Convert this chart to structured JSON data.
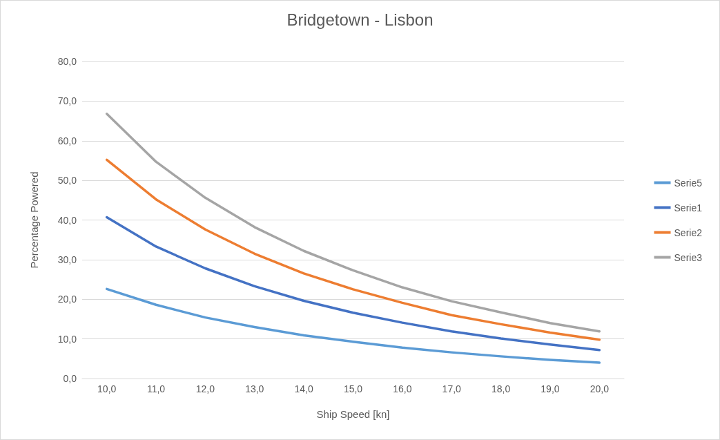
{
  "chart_data": {
    "type": "line",
    "title": "Bridgetown - Lisbon",
    "xlabel": "Ship Speed [kn]",
    "ylabel": "Percentage Powered",
    "categories": [
      "10,0",
      "11,0",
      "12,0",
      "13,0",
      "14,0",
      "15,0",
      "16,0",
      "17,0",
      "18,0",
      "19,0",
      "20,0"
    ],
    "series": [
      {
        "name": "Serie5",
        "color": "#5b9bd5",
        "values": [
          22.6,
          18.6,
          15.4,
          13.0,
          10.9,
          9.3,
          7.8,
          6.6,
          5.6,
          4.7,
          4.0
        ]
      },
      {
        "name": "Serie1",
        "color": "#4472c4",
        "values": [
          40.7,
          33.3,
          27.8,
          23.3,
          19.6,
          16.6,
          14.1,
          11.9,
          10.1,
          8.6,
          7.2
        ]
      },
      {
        "name": "Serie2",
        "color": "#ed7d31",
        "values": [
          55.2,
          45.2,
          37.6,
          31.5,
          26.5,
          22.5,
          19.1,
          16.0,
          13.7,
          11.6,
          9.8
        ]
      },
      {
        "name": "Serie3",
        "color": "#a5a5a5",
        "values": [
          66.8,
          54.7,
          45.6,
          38.2,
          32.2,
          27.3,
          23.0,
          19.5,
          16.7,
          14.0,
          11.9
        ]
      }
    ],
    "ylim": [
      0,
      80
    ],
    "yticks": [
      {
        "value": 0,
        "label": "0,0"
      },
      {
        "value": 10,
        "label": "10,0"
      },
      {
        "value": 20,
        "label": "20,0"
      },
      {
        "value": 30,
        "label": "30,0"
      },
      {
        "value": 40,
        "label": "40,0"
      },
      {
        "value": 50,
        "label": "50,0"
      },
      {
        "value": 60,
        "label": "60,0"
      },
      {
        "value": 70,
        "label": "70,0"
      },
      {
        "value": 80,
        "label": "80,0"
      }
    ],
    "grid": "y",
    "legend": "right",
    "marker": "none",
    "line_style": "solid"
  }
}
